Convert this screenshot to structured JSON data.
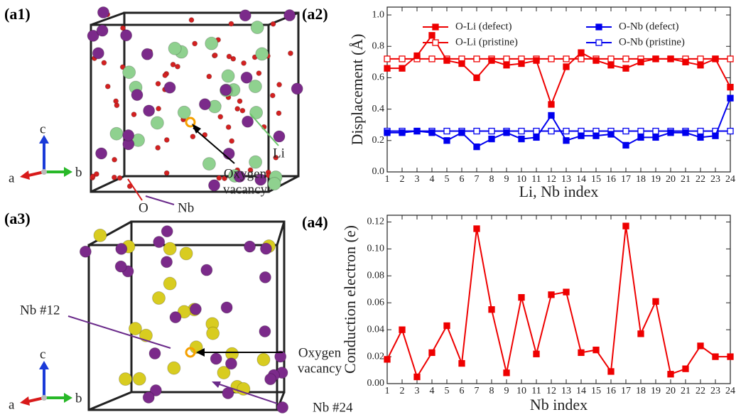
{
  "chart_data": [
    {
      "type": "line",
      "panel": "(a2)",
      "ylabel": "Displacement (Å)",
      "xlabel": "Li, Nb index",
      "x": [
        1,
        2,
        3,
        4,
        5,
        6,
        7,
        8,
        9,
        10,
        11,
        12,
        13,
        14,
        15,
        16,
        17,
        18,
        19,
        20,
        21,
        22,
        23,
        24
      ],
      "xlim": [
        1,
        24
      ],
      "xticks": [
        1,
        2,
        3,
        4,
        5,
        6,
        7,
        8,
        9,
        10,
        11,
        12,
        13,
        14,
        15,
        16,
        17,
        18,
        19,
        20,
        21,
        22,
        23,
        24
      ],
      "ylim": [
        0,
        1.05
      ],
      "yticks": [
        {
          "value": 0,
          "label": "0.0"
        },
        {
          "value": 0.2,
          "label": "0.2"
        },
        {
          "value": 0.4,
          "label": "0.4"
        },
        {
          "value": 0.6,
          "label": "0.6"
        },
        {
          "value": 0.8,
          "label": "0.8"
        },
        {
          "value": 1.0,
          "label": "1.0"
        }
      ],
      "legend": "upper",
      "series": [
        {
          "name": "O-Li (defect)",
          "color": "#ee0000",
          "filled": true,
          "values": [
            0.66,
            0.66,
            0.74,
            0.87,
            0.71,
            0.69,
            0.6,
            0.71,
            0.68,
            0.69,
            0.71,
            0.43,
            0.67,
            0.76,
            0.71,
            0.68,
            0.66,
            0.7,
            0.72,
            0.72,
            0.7,
            0.68,
            0.72,
            0.54
          ]
        },
        {
          "name": "O-Nb (defect)",
          "color": "#0000ee",
          "filled": true,
          "values": [
            0.25,
            0.25,
            0.26,
            0.25,
            0.2,
            0.25,
            0.16,
            0.21,
            0.25,
            0.21,
            0.22,
            0.36,
            0.2,
            0.23,
            0.23,
            0.24,
            0.17,
            0.22,
            0.22,
            0.25,
            0.25,
            0.22,
            0.23,
            0.47
          ]
        },
        {
          "name": "O-Li (pristine)",
          "color": "#ee0000",
          "filled": false,
          "values": [
            0.72,
            0.72,
            0.72,
            0.72,
            0.72,
            0.72,
            0.72,
            0.72,
            0.72,
            0.72,
            0.72,
            0.72,
            0.72,
            0.72,
            0.72,
            0.72,
            0.72,
            0.72,
            0.72,
            0.72,
            0.72,
            0.72,
            0.72,
            0.72
          ]
        },
        {
          "name": "O-Nb (pristine)",
          "color": "#0000ee",
          "filled": false,
          "values": [
            0.26,
            0.26,
            0.26,
            0.26,
            0.26,
            0.26,
            0.26,
            0.26,
            0.26,
            0.26,
            0.26,
            0.26,
            0.26,
            0.26,
            0.26,
            0.26,
            0.26,
            0.26,
            0.26,
            0.26,
            0.26,
            0.26,
            0.26,
            0.26
          ]
        }
      ]
    },
    {
      "type": "line",
      "panel": "(a4)",
      "ylabel": "Conduction electron (e)",
      "xlabel": "Nb index",
      "x": [
        1,
        2,
        3,
        4,
        5,
        6,
        7,
        8,
        9,
        10,
        11,
        12,
        13,
        14,
        15,
        16,
        17,
        18,
        19,
        20,
        21,
        22,
        23,
        24
      ],
      "xlim": [
        1,
        24
      ],
      "xticks": [
        1,
        2,
        3,
        4,
        5,
        6,
        7,
        8,
        9,
        10,
        11,
        12,
        13,
        14,
        15,
        16,
        17,
        18,
        19,
        20,
        21,
        22,
        23,
        24
      ],
      "ylim": [
        0,
        0.125
      ],
      "yticks": [
        {
          "value": 0,
          "label": "0.00"
        },
        {
          "value": 0.02,
          "label": "0.02"
        },
        {
          "value": 0.04,
          "label": "0.04"
        },
        {
          "value": 0.06,
          "label": "0.06"
        },
        {
          "value": 0.08,
          "label": "0.08"
        },
        {
          "value": 0.1,
          "label": "0.10"
        },
        {
          "value": 0.12,
          "label": "0.12"
        }
      ],
      "color": "#ee0000",
      "values": [
        0.018,
        0.04,
        0.005,
        0.023,
        0.043,
        0.015,
        0.115,
        0.055,
        0.008,
        0.064,
        0.022,
        0.066,
        0.068,
        0.023,
        0.025,
        0.009,
        0.117,
        0.037,
        0.061,
        0.007,
        0.011,
        0.028,
        0.02,
        0.02
      ]
    }
  ],
  "structures": [
    {
      "panel": "(a1)",
      "li": "Li",
      "o": "O",
      "nb": "Nb",
      "vacancy": [
        "Oxygen",
        "vacancy"
      ],
      "axes": [
        "a",
        "b",
        "c"
      ]
    },
    {
      "panel": "(a3)",
      "nb12": "Nb #12",
      "nb24": "Nb #24",
      "vacancy": [
        "Oxygen",
        "vacancy"
      ],
      "axes": [
        "a",
        "b",
        "c"
      ]
    }
  ]
}
